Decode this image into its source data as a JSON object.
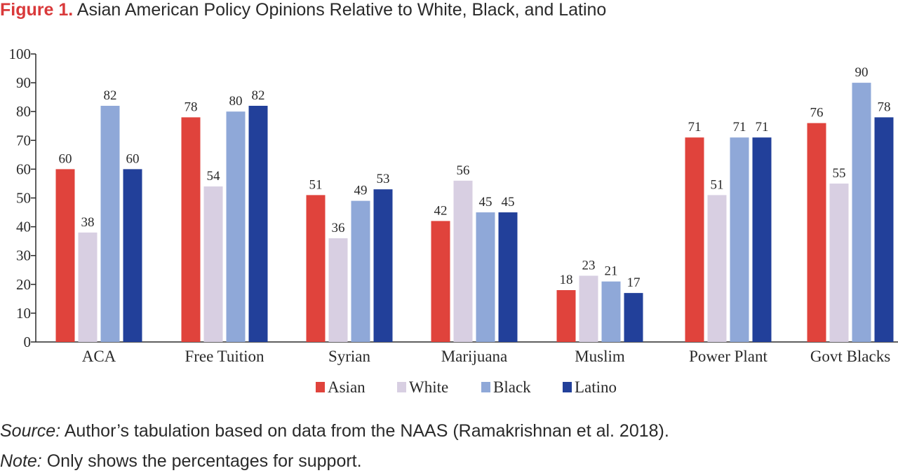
{
  "title": {
    "figure_label": "Figure 1.",
    "text": "Asian American Policy Opinions Relative to White, Black, and Latino"
  },
  "chart_data": {
    "type": "bar",
    "categories": [
      "ACA",
      "Free Tuition",
      "Syrian",
      "Marijuana",
      "Muslim",
      "Power Plant",
      "Govt Blacks"
    ],
    "series": [
      {
        "name": "Asian",
        "color": "#e0433c",
        "values": [
          60,
          78,
          51,
          42,
          18,
          71,
          76
        ]
      },
      {
        "name": "White",
        "color": "#d8cfe2",
        "values": [
          38,
          54,
          36,
          56,
          23,
          51,
          55
        ]
      },
      {
        "name": "Black",
        "color": "#8fa8d8",
        "values": [
          82,
          80,
          49,
          45,
          21,
          71,
          90
        ]
      },
      {
        "name": "Latino",
        "color": "#22409a",
        "values": [
          60,
          82,
          53,
          45,
          17,
          71,
          78
        ]
      }
    ],
    "ylim": [
      0,
      100
    ],
    "yticks": [
      0,
      10,
      20,
      30,
      40,
      50,
      60,
      70,
      80,
      90,
      100
    ],
    "legend_position": "bottom-center",
    "grid": false
  },
  "footer": {
    "source_label": "Source:",
    "source_text": "Author’s tabulation based on data from the NAAS (Ramakrishnan et al. 2018).",
    "note_label": "Note:",
    "note_text": "Only shows the percentages for support."
  }
}
